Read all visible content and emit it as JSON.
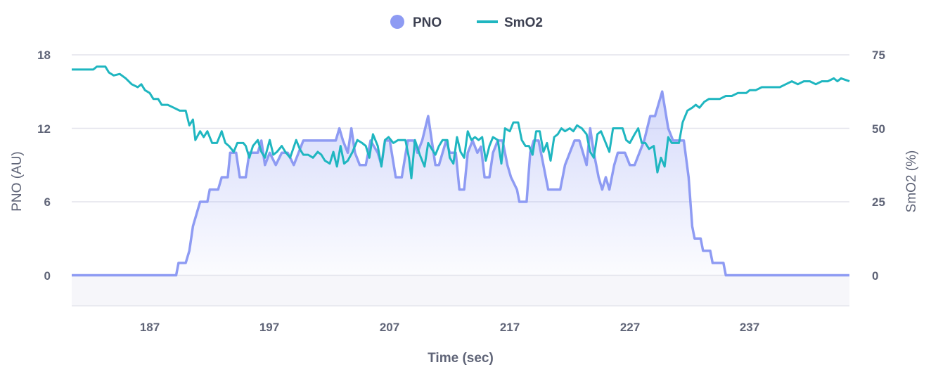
{
  "chart_data": {
    "type": "line",
    "legend": {
      "placement": "top",
      "entries": [
        "PNO",
        "SmO2"
      ]
    },
    "xlabel": "Time (sec)",
    "ylabel_left": "PNO (AU)",
    "ylabel_right": "SmO2 (%)",
    "xlim": [
      180.5,
      245.3
    ],
    "ylim_left": [
      -2.5,
      18
    ],
    "ylim_right": [
      -10.4,
      75
    ],
    "x_ticks": [
      "187",
      "197",
      "207",
      "217",
      "227",
      "237"
    ],
    "y_ticks_left": [
      "18",
      "12",
      "6",
      "0"
    ],
    "y_ticks_right": [
      "75",
      "50",
      "25",
      "0"
    ],
    "grid": true,
    "colors": {
      "PNO": "#8e9bf3",
      "SmO2": "#1fb6c0"
    },
    "series": [
      {
        "name": "PNO",
        "axis": "left",
        "style": "area",
        "points": [
          [
            180.5,
            0
          ],
          [
            189.2,
            0
          ],
          [
            189.4,
            1
          ],
          [
            190,
            1
          ],
          [
            190.3,
            2
          ],
          [
            190.6,
            4
          ],
          [
            190.9,
            5
          ],
          [
            191.2,
            6
          ],
          [
            191.8,
            6
          ],
          [
            192,
            7
          ],
          [
            192.7,
            7
          ],
          [
            193,
            8
          ],
          [
            193.5,
            8
          ],
          [
            193.7,
            10
          ],
          [
            194.2,
            10
          ],
          [
            194.5,
            8
          ],
          [
            195,
            8
          ],
          [
            195.3,
            10
          ],
          [
            196,
            10
          ],
          [
            196.3,
            11
          ],
          [
            196.6,
            9
          ],
          [
            197,
            10
          ],
          [
            197.5,
            9
          ],
          [
            198,
            10
          ],
          [
            198.5,
            10
          ],
          [
            199,
            9
          ],
          [
            199.4,
            10
          ],
          [
            199.8,
            11
          ],
          [
            202.5,
            11
          ],
          [
            202.8,
            12
          ],
          [
            203.1,
            11
          ],
          [
            203.5,
            10
          ],
          [
            203.8,
            12
          ],
          [
            204.1,
            10
          ],
          [
            204.5,
            9
          ],
          [
            205,
            9
          ],
          [
            205.4,
            11
          ],
          [
            206,
            10
          ],
          [
            206.3,
            9
          ],
          [
            206.6,
            11
          ],
          [
            207,
            11
          ],
          [
            207.5,
            8
          ],
          [
            208,
            8
          ],
          [
            208.5,
            11
          ],
          [
            209,
            11
          ],
          [
            209.3,
            10
          ],
          [
            209.7,
            11
          ],
          [
            210.2,
            13
          ],
          [
            210.5,
            11
          ],
          [
            210.8,
            9
          ],
          [
            211.1,
            9
          ],
          [
            211.4,
            10
          ],
          [
            211.7,
            11
          ],
          [
            212,
            10
          ],
          [
            212.5,
            10
          ],
          [
            212.8,
            7
          ],
          [
            213.2,
            7
          ],
          [
            213.5,
            10
          ],
          [
            213.9,
            11
          ],
          [
            214.3,
            10
          ],
          [
            214.6,
            10.5
          ],
          [
            214.9,
            8
          ],
          [
            215.3,
            8
          ],
          [
            215.6,
            10
          ],
          [
            216,
            11
          ],
          [
            216.4,
            11
          ],
          [
            216.8,
            9
          ],
          [
            217.1,
            8
          ],
          [
            217.6,
            7
          ],
          [
            217.8,
            6
          ],
          [
            218.4,
            6
          ],
          [
            218.7,
            10
          ],
          [
            219,
            11
          ],
          [
            219.4,
            11
          ],
          [
            219.8,
            9
          ],
          [
            220.2,
            7
          ],
          [
            221.2,
            7
          ],
          [
            221.6,
            9
          ],
          [
            222,
            10
          ],
          [
            222.4,
            11
          ],
          [
            222.8,
            11
          ],
          [
            223.1,
            10
          ],
          [
            223.4,
            9
          ],
          [
            223.7,
            12
          ],
          [
            224,
            10
          ],
          [
            224.4,
            8
          ],
          [
            224.7,
            7
          ],
          [
            225,
            8
          ],
          [
            225.3,
            7
          ],
          [
            225.7,
            9
          ],
          [
            226,
            10
          ],
          [
            226.6,
            10
          ],
          [
            227,
            9
          ],
          [
            227.4,
            9
          ],
          [
            227.8,
            10
          ],
          [
            228.2,
            11
          ],
          [
            228.7,
            13
          ],
          [
            229.1,
            13
          ],
          [
            229.7,
            15
          ],
          [
            230.2,
            12
          ],
          [
            230.6,
            11
          ],
          [
            231.5,
            11
          ],
          [
            231.9,
            8
          ],
          [
            232.2,
            4
          ],
          [
            232.4,
            3
          ],
          [
            232.9,
            3
          ],
          [
            233.1,
            2
          ],
          [
            233.7,
            2
          ],
          [
            233.9,
            1
          ],
          [
            234.8,
            1
          ],
          [
            235,
            0
          ],
          [
            245.3,
            0
          ]
        ]
      },
      {
        "name": "SmO2",
        "axis": "right",
        "style": "line",
        "points": [
          [
            180.5,
            70
          ],
          [
            182.3,
            70
          ],
          [
            182.6,
            71
          ],
          [
            183.3,
            71
          ],
          [
            183.6,
            69
          ],
          [
            184,
            68
          ],
          [
            184.5,
            68.5
          ],
          [
            185,
            67
          ],
          [
            185.5,
            65
          ],
          [
            186,
            64
          ],
          [
            186.3,
            65
          ],
          [
            186.6,
            63
          ],
          [
            187,
            62
          ],
          [
            187.3,
            60
          ],
          [
            187.7,
            60
          ],
          [
            188,
            58
          ],
          [
            188.5,
            58
          ],
          [
            189,
            57
          ],
          [
            189.5,
            56
          ],
          [
            190,
            56
          ],
          [
            190.3,
            51
          ],
          [
            190.6,
            53
          ],
          [
            190.8,
            46
          ],
          [
            191.2,
            49
          ],
          [
            191.5,
            47
          ],
          [
            191.8,
            49
          ],
          [
            192.2,
            45
          ],
          [
            192.6,
            45
          ],
          [
            193,
            49
          ],
          [
            193.3,
            45
          ],
          [
            193.6,
            44
          ],
          [
            194,
            42
          ],
          [
            194.3,
            45
          ],
          [
            194.8,
            45
          ],
          [
            195,
            44
          ],
          [
            195.3,
            40
          ],
          [
            195.6,
            44
          ],
          [
            196,
            46
          ],
          [
            196.3,
            42
          ],
          [
            196.6,
            40
          ],
          [
            197,
            46
          ],
          [
            197.3,
            41
          ],
          [
            197.6,
            42
          ],
          [
            198,
            44
          ],
          [
            198.3,
            42
          ],
          [
            198.7,
            40
          ],
          [
            199.2,
            46
          ],
          [
            199.5,
            43
          ],
          [
            199.8,
            41
          ],
          [
            200.2,
            41
          ],
          [
            200.6,
            40
          ],
          [
            201,
            42
          ],
          [
            201.3,
            41
          ],
          [
            201.6,
            39
          ],
          [
            202,
            38
          ],
          [
            202.3,
            42
          ],
          [
            202.6,
            37
          ],
          [
            202.9,
            44
          ],
          [
            203.2,
            38
          ],
          [
            203.5,
            39
          ],
          [
            203.9,
            42
          ],
          [
            204.3,
            46
          ],
          [
            204.7,
            45
          ],
          [
            205,
            44
          ],
          [
            205.3,
            40
          ],
          [
            205.6,
            48
          ],
          [
            206,
            44
          ],
          [
            206.3,
            37
          ],
          [
            206.6,
            46
          ],
          [
            206.9,
            47
          ],
          [
            207.3,
            45
          ],
          [
            207.7,
            46
          ],
          [
            208.3,
            46
          ],
          [
            208.6,
            40
          ],
          [
            208.8,
            33
          ],
          [
            209.1,
            46
          ],
          [
            209.5,
            41
          ],
          [
            209.9,
            37
          ],
          [
            210.2,
            45
          ],
          [
            210.5,
            43
          ],
          [
            210.8,
            41
          ],
          [
            211.1,
            44
          ],
          [
            211.4,
            46
          ],
          [
            211.8,
            46
          ],
          [
            212,
            40
          ],
          [
            212.3,
            38
          ],
          [
            212.6,
            47
          ],
          [
            212.9,
            42
          ],
          [
            213.2,
            40
          ],
          [
            213.5,
            49
          ],
          [
            213.8,
            46
          ],
          [
            214.1,
            47
          ],
          [
            214.4,
            46
          ],
          [
            214.7,
            47
          ],
          [
            215,
            39
          ],
          [
            215.3,
            44
          ],
          [
            215.6,
            47
          ],
          [
            216,
            46
          ],
          [
            216.3,
            38
          ],
          [
            216.6,
            50
          ],
          [
            217,
            49
          ],
          [
            217.3,
            52
          ],
          [
            217.7,
            52
          ],
          [
            218,
            46
          ],
          [
            218.3,
            44
          ],
          [
            218.6,
            44
          ],
          [
            218.9,
            41
          ],
          [
            219.2,
            49
          ],
          [
            219.5,
            49
          ],
          [
            219.8,
            42
          ],
          [
            220.1,
            45
          ],
          [
            220.4,
            39
          ],
          [
            220.7,
            47
          ],
          [
            221,
            48
          ],
          [
            221.3,
            50
          ],
          [
            221.6,
            49
          ],
          [
            222,
            50
          ],
          [
            222.3,
            49
          ],
          [
            222.6,
            51
          ],
          [
            223,
            50
          ],
          [
            223.4,
            48
          ],
          [
            223.7,
            42
          ],
          [
            224,
            40
          ],
          [
            224.3,
            48
          ],
          [
            224.6,
            49
          ],
          [
            225,
            45
          ],
          [
            225.3,
            42
          ],
          [
            225.6,
            50
          ],
          [
            226,
            50
          ],
          [
            226.4,
            50
          ],
          [
            226.7,
            46
          ],
          [
            227,
            45
          ],
          [
            227.4,
            48
          ],
          [
            227.7,
            50
          ],
          [
            228,
            45
          ],
          [
            228.3,
            45
          ],
          [
            228.6,
            43
          ],
          [
            229,
            44
          ],
          [
            229.3,
            35
          ],
          [
            229.6,
            40
          ],
          [
            229.9,
            37
          ],
          [
            230.2,
            47
          ],
          [
            230.5,
            45
          ],
          [
            231.1,
            45
          ],
          [
            231.4,
            52
          ],
          [
            231.8,
            56
          ],
          [
            232.2,
            57
          ],
          [
            232.5,
            58
          ],
          [
            232.8,
            57
          ],
          [
            233.2,
            59
          ],
          [
            233.6,
            60
          ],
          [
            234.5,
            60
          ],
          [
            235,
            61
          ],
          [
            235.5,
            61
          ],
          [
            236,
            62
          ],
          [
            236.7,
            62
          ],
          [
            237,
            63
          ],
          [
            237.5,
            63
          ],
          [
            238,
            64
          ],
          [
            239.5,
            64
          ],
          [
            240,
            65
          ],
          [
            240.5,
            66
          ],
          [
            241,
            65
          ],
          [
            241.5,
            66
          ],
          [
            242,
            66
          ],
          [
            242.5,
            65
          ],
          [
            243,
            66
          ],
          [
            243.5,
            66
          ],
          [
            244,
            67
          ],
          [
            244.3,
            66
          ],
          [
            244.6,
            67
          ],
          [
            245.3,
            66
          ]
        ]
      }
    ]
  }
}
